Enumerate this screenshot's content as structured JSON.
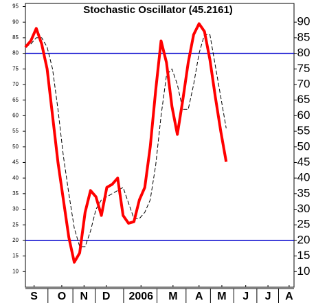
{
  "chart_data": {
    "type": "line",
    "title": "Stochastic Oscillator (45.2161)",
    "x": [
      0,
      1,
      2,
      3,
      4,
      5,
      6,
      7,
      8,
      9,
      10,
      11,
      12,
      13,
      14,
      15,
      16,
      17,
      18,
      19,
      20,
      21,
      22,
      23,
      24,
      25,
      26,
      27,
      28,
      29,
      30,
      31,
      32,
      33,
      34,
      35,
      36,
      37
    ],
    "series": [
      {
        "color": "#ff0000",
        "width": 4,
        "dashed": false,
        "values": [
          82,
          84,
          88,
          83,
          75,
          60,
          45,
          33,
          21,
          13,
          16,
          29,
          36,
          34,
          28,
          37,
          38,
          40,
          28,
          25.5,
          26,
          33,
          37,
          50,
          68,
          84,
          77,
          63,
          54,
          65,
          77,
          86,
          89.5,
          87,
          78,
          66,
          55,
          45.2161
        ]
      },
      {
        "color": "#000000",
        "width": 1,
        "dashed": true,
        "values": [
          82,
          83,
          85,
          85,
          82,
          75,
          62,
          47,
          35,
          24,
          18,
          18,
          23,
          30,
          33,
          34,
          35,
          36,
          37,
          32,
          27,
          27,
          29,
          33,
          44,
          60,
          73,
          75,
          70,
          62,
          62,
          70,
          80,
          86,
          86,
          76,
          66,
          56
        ]
      }
    ],
    "xlim": [
      0,
      49.5
    ],
    "xticks": [
      {
        "value": 1.6,
        "label": "S"
      },
      {
        "value": 6.7,
        "label": "O"
      },
      {
        "value": 10.8,
        "label": "N"
      },
      {
        "value": 14.9,
        "label": "D"
      },
      {
        "value": 21.3,
        "label": "2006"
      },
      {
        "value": 27.2,
        "label": "M"
      },
      {
        "value": 32,
        "label": "A"
      },
      {
        "value": 36.2,
        "label": "M"
      },
      {
        "value": 40.6,
        "label": "J"
      },
      {
        "value": 44.7,
        "label": "J"
      },
      {
        "value": 48.6,
        "label": "A"
      }
    ],
    "ylim": [
      5,
      96
    ],
    "yticks": [
      10,
      15,
      20,
      25,
      30,
      35,
      40,
      45,
      50,
      55,
      60,
      65,
      70,
      75,
      80,
      85,
      90,
      95
    ],
    "y2lim": [
      5,
      96
    ],
    "y2ticks": [
      10,
      15,
      20,
      25,
      30,
      35,
      40,
      45,
      50,
      55,
      60,
      65,
      70,
      75,
      80,
      85,
      90
    ],
    "ref_lines": [
      80,
      20
    ],
    "ref_color": "#0000cc"
  }
}
